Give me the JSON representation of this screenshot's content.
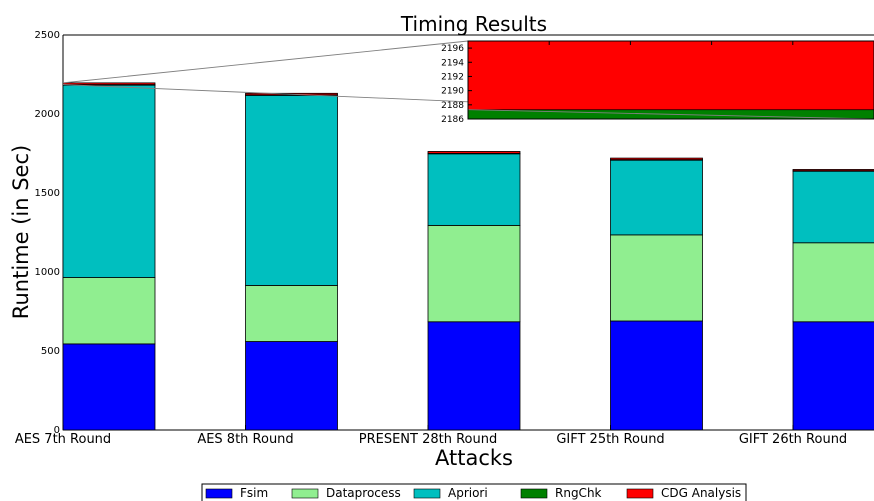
{
  "chart_data": {
    "type": "bar",
    "stacked": true,
    "title": "Timing Results",
    "xlabel": "Attacks",
    "ylabel": "Runtime (in Sec)",
    "ylim": [
      0,
      2500
    ],
    "yticks": [
      "0",
      "500",
      "1000",
      "1500",
      "2000",
      "2500"
    ],
    "categories": [
      "AES 7th Round",
      "AES 8th Round",
      "PRESENT 28th Round",
      "GIFT 25th Round",
      "GIFT 26th Round"
    ],
    "series": [
      {
        "name": "Fsim",
        "color": "#0000ff",
        "values": [
          545,
          560,
          685,
          690,
          685
        ]
      },
      {
        "name": "Dataprocess",
        "color": "#90ee90",
        "values": [
          420,
          355,
          610,
          545,
          500
        ]
      },
      {
        "name": "Apriori",
        "color": "#00bfbf",
        "values": [
          1220,
          1205,
          455,
          475,
          455
        ]
      },
      {
        "name": "RngChk",
        "color": "#008000",
        "values": [
          1,
          1,
          1,
          1,
          1
        ]
      },
      {
        "name": "CDG Analysis",
        "color": "#ff0000",
        "values": [
          11,
          10,
          12,
          10,
          8
        ]
      }
    ],
    "legend_position": "bottom-center",
    "grid": false,
    "inset": {
      "description_type": "zoom",
      "ylim": [
        2186,
        2197
      ],
      "yticks": [
        "2186",
        "2188",
        "2190",
        "2192",
        "2194",
        "2196"
      ]
    }
  }
}
